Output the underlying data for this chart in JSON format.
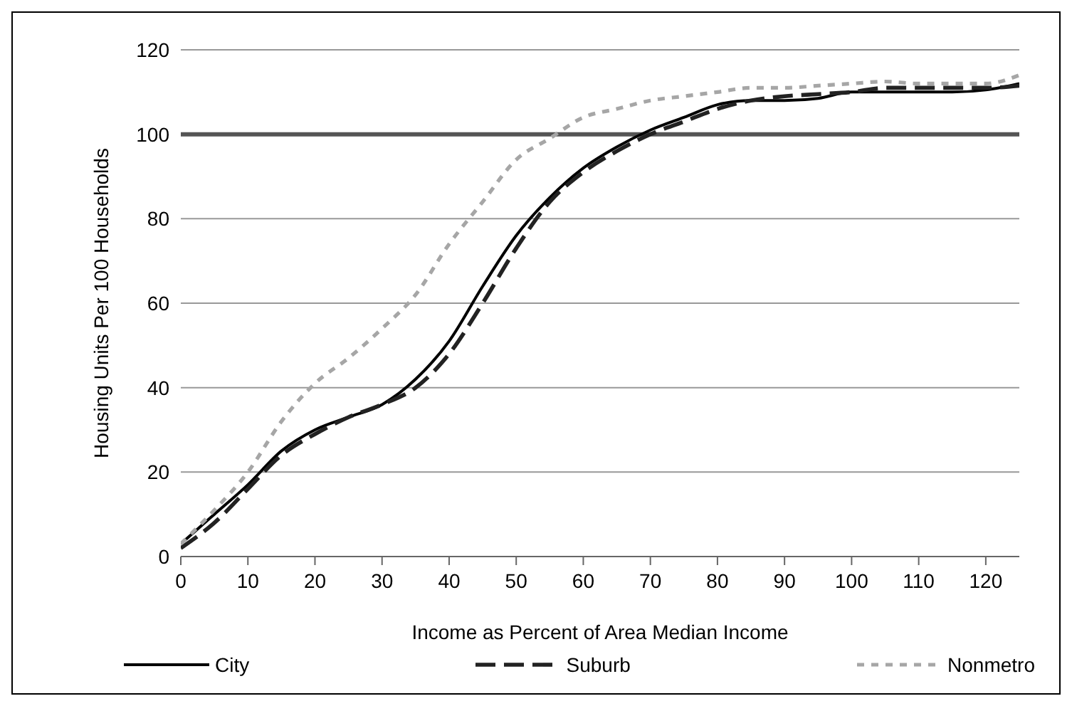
{
  "chart_data": {
    "type": "line",
    "xlabel": "Income as Percent of Area Median Income",
    "ylabel": "Housing Units Per 100 Households",
    "x": [
      0,
      5,
      10,
      15,
      20,
      25,
      30,
      35,
      40,
      45,
      50,
      55,
      60,
      65,
      70,
      75,
      80,
      85,
      90,
      95,
      100,
      105,
      110,
      115,
      120,
      125
    ],
    "series": [
      {
        "name": "City",
        "color": "#000000",
        "line_style": "solid",
        "values": [
          3,
          10,
          17,
          25,
          30,
          33,
          36,
          42,
          51,
          64,
          76,
          85,
          92,
          97,
          101,
          104,
          107,
          108,
          108,
          108.5,
          110,
          110,
          110,
          110,
          110.5,
          112
        ]
      },
      {
        "name": "Suburb",
        "color": "#222222",
        "line_style": "dashed",
        "values": [
          2,
          8,
          16,
          24,
          29,
          33,
          36,
          40,
          48,
          60,
          73,
          84,
          91,
          96,
          100,
          103,
          106,
          108,
          109,
          109.5,
          110,
          111,
          111,
          111,
          111,
          111.5
        ]
      },
      {
        "name": "Nonmetro",
        "color": "#a6a6a6",
        "line_style": "dotted",
        "values": [
          3,
          11,
          20,
          32,
          41,
          47,
          54,
          62,
          74,
          84,
          94,
          99,
          104,
          106,
          108,
          109,
          110,
          111,
          111,
          111.5,
          112,
          112.5,
          112,
          112,
          112,
          114
        ]
      }
    ],
    "xlim": [
      0,
      125
    ],
    "xticks": [
      0,
      10,
      20,
      30,
      40,
      50,
      60,
      70,
      80,
      90,
      100,
      110,
      120
    ],
    "ylim": [
      0,
      120
    ],
    "yticks": [
      0,
      20,
      40,
      60,
      80,
      100,
      120
    ],
    "ref_lines": [
      {
        "axis": "y",
        "value": 100,
        "color": "#555555"
      }
    ],
    "grid": "y",
    "legend": "bottom",
    "marker": "none"
  }
}
